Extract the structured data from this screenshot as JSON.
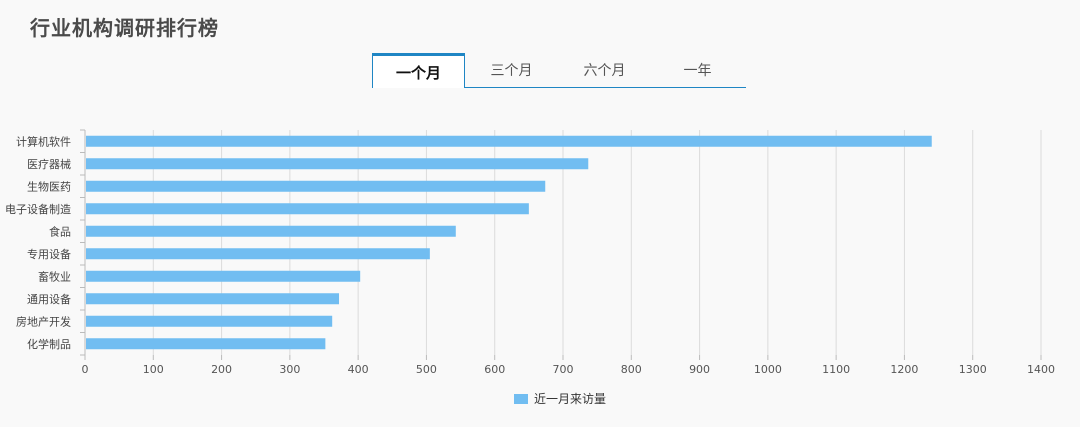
{
  "title": "行业机构调研排行榜",
  "tabs": [
    {
      "label": "一个月",
      "active": true
    },
    {
      "label": "三个月",
      "active": false
    },
    {
      "label": "六个月",
      "active": false
    },
    {
      "label": "一年",
      "active": false
    }
  ],
  "colors": {
    "bar": "#71bdf1",
    "accent": "#1f86c4",
    "grid": "#dcdcdc"
  },
  "chart_data": {
    "type": "bar",
    "orientation": "horizontal",
    "categories": [
      "计算机软件",
      "医疗器械",
      "生物医药",
      "电子设备制造",
      "食品",
      "专用设备",
      "畜牧业",
      "通用设备",
      "房地产开发",
      "化学制品"
    ],
    "series": [
      {
        "name": "近一月来访量",
        "values": [
          1240,
          737,
          674,
          650,
          543,
          505,
          403,
          372,
          362,
          352
        ]
      }
    ],
    "xlim": [
      0,
      1400
    ],
    "xticks": [
      "0",
      "100",
      "200",
      "300",
      "400",
      "500",
      "600",
      "700",
      "800",
      "900",
      "1000",
      "1100",
      "1200",
      "1300",
      "1400"
    ],
    "grid": true,
    "legend": "bottom"
  }
}
